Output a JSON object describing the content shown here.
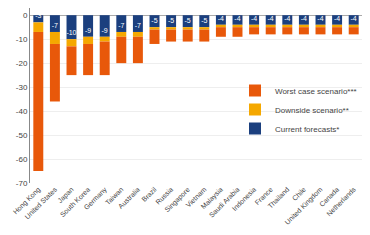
{
  "chart_data": {
    "type": "bar",
    "stacked": true,
    "categories": [
      "Hong Kong",
      "United States",
      "Japan",
      "South Korea",
      "Germany",
      "Taiwan",
      "Australia",
      "Brazil",
      "Russia",
      "Singapore",
      "Vietnam",
      "Malaysia",
      "Saudi Arabia",
      "Indonesia",
      "France",
      "Thailand",
      "Chile",
      "United Kingdom",
      "Canada",
      "Netherlands"
    ],
    "series": [
      {
        "name": "Current forecasts*",
        "color": "#1b3f7e",
        "data_labels": true,
        "values": [
          -3,
          -7,
          -10,
          -9,
          -9,
          -7,
          -7,
          -5,
          -5,
          -5,
          -5,
          -4,
          -4,
          -4,
          -4,
          -4,
          -4,
          -4,
          -4,
          -4
        ]
      },
      {
        "name": "Downside scenario**",
        "color": "#f5a800",
        "values": [
          -4,
          -5,
          -3,
          -3,
          -2,
          -2,
          -2,
          -1,
          -1,
          -1,
          -1,
          -1,
          -1,
          -1,
          -1,
          -1,
          -1,
          -1,
          -1,
          -1
        ]
      },
      {
        "name": "Worst case scenario***",
        "color": "#e8580a",
        "values": [
          -58,
          -24,
          -12,
          -13,
          -14,
          -11,
          -11,
          -6,
          -5,
          -5,
          -5,
          -4,
          -4,
          -3,
          -3,
          -3,
          -3,
          -3,
          -3,
          -3
        ]
      }
    ],
    "ylim": [
      -70,
      3
    ],
    "yticks": [
      0,
      -10,
      -20,
      -30,
      -40,
      -50,
      -60,
      -70
    ],
    "grid": true,
    "legend": "right"
  }
}
